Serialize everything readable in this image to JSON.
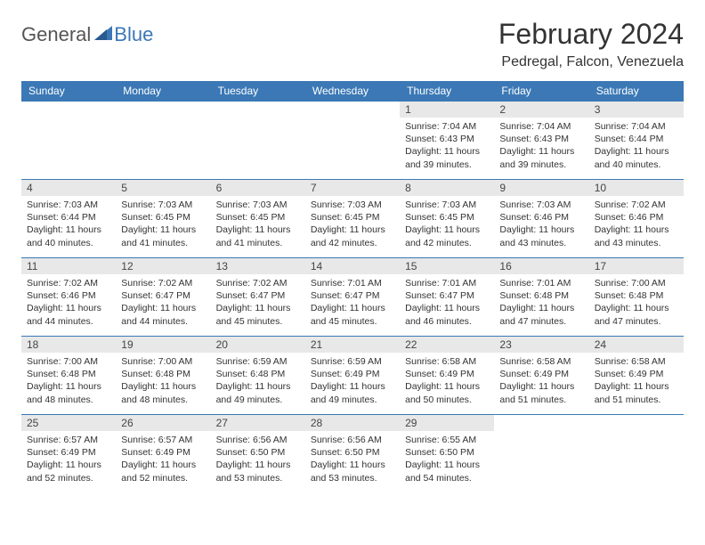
{
  "logo": {
    "general": "General",
    "blue": "Blue"
  },
  "title": "February 2024",
  "location": "Pedregal, Falcon, Venezuela",
  "colors": {
    "header_bg": "#3b78b5",
    "header_text": "#ffffff",
    "daynum_bg": "#e8e8e8",
    "row_border": "#3b78b5",
    "logo_general": "#555555",
    "logo_blue": "#3b78b5"
  },
  "weekdays": [
    "Sunday",
    "Monday",
    "Tuesday",
    "Wednesday",
    "Thursday",
    "Friday",
    "Saturday"
  ],
  "weeks": [
    [
      {
        "day": "",
        "sunrise": "",
        "sunset": "",
        "daylight": ""
      },
      {
        "day": "",
        "sunrise": "",
        "sunset": "",
        "daylight": ""
      },
      {
        "day": "",
        "sunrise": "",
        "sunset": "",
        "daylight": ""
      },
      {
        "day": "",
        "sunrise": "",
        "sunset": "",
        "daylight": ""
      },
      {
        "day": "1",
        "sunrise": "Sunrise: 7:04 AM",
        "sunset": "Sunset: 6:43 PM",
        "daylight": "Daylight: 11 hours and 39 minutes."
      },
      {
        "day": "2",
        "sunrise": "Sunrise: 7:04 AM",
        "sunset": "Sunset: 6:43 PM",
        "daylight": "Daylight: 11 hours and 39 minutes."
      },
      {
        "day": "3",
        "sunrise": "Sunrise: 7:04 AM",
        "sunset": "Sunset: 6:44 PM",
        "daylight": "Daylight: 11 hours and 40 minutes."
      }
    ],
    [
      {
        "day": "4",
        "sunrise": "Sunrise: 7:03 AM",
        "sunset": "Sunset: 6:44 PM",
        "daylight": "Daylight: 11 hours and 40 minutes."
      },
      {
        "day": "5",
        "sunrise": "Sunrise: 7:03 AM",
        "sunset": "Sunset: 6:45 PM",
        "daylight": "Daylight: 11 hours and 41 minutes."
      },
      {
        "day": "6",
        "sunrise": "Sunrise: 7:03 AM",
        "sunset": "Sunset: 6:45 PM",
        "daylight": "Daylight: 11 hours and 41 minutes."
      },
      {
        "day": "7",
        "sunrise": "Sunrise: 7:03 AM",
        "sunset": "Sunset: 6:45 PM",
        "daylight": "Daylight: 11 hours and 42 minutes."
      },
      {
        "day": "8",
        "sunrise": "Sunrise: 7:03 AM",
        "sunset": "Sunset: 6:45 PM",
        "daylight": "Daylight: 11 hours and 42 minutes."
      },
      {
        "day": "9",
        "sunrise": "Sunrise: 7:03 AM",
        "sunset": "Sunset: 6:46 PM",
        "daylight": "Daylight: 11 hours and 43 minutes."
      },
      {
        "day": "10",
        "sunrise": "Sunrise: 7:02 AM",
        "sunset": "Sunset: 6:46 PM",
        "daylight": "Daylight: 11 hours and 43 minutes."
      }
    ],
    [
      {
        "day": "11",
        "sunrise": "Sunrise: 7:02 AM",
        "sunset": "Sunset: 6:46 PM",
        "daylight": "Daylight: 11 hours and 44 minutes."
      },
      {
        "day": "12",
        "sunrise": "Sunrise: 7:02 AM",
        "sunset": "Sunset: 6:47 PM",
        "daylight": "Daylight: 11 hours and 44 minutes."
      },
      {
        "day": "13",
        "sunrise": "Sunrise: 7:02 AM",
        "sunset": "Sunset: 6:47 PM",
        "daylight": "Daylight: 11 hours and 45 minutes."
      },
      {
        "day": "14",
        "sunrise": "Sunrise: 7:01 AM",
        "sunset": "Sunset: 6:47 PM",
        "daylight": "Daylight: 11 hours and 45 minutes."
      },
      {
        "day": "15",
        "sunrise": "Sunrise: 7:01 AM",
        "sunset": "Sunset: 6:47 PM",
        "daylight": "Daylight: 11 hours and 46 minutes."
      },
      {
        "day": "16",
        "sunrise": "Sunrise: 7:01 AM",
        "sunset": "Sunset: 6:48 PM",
        "daylight": "Daylight: 11 hours and 47 minutes."
      },
      {
        "day": "17",
        "sunrise": "Sunrise: 7:00 AM",
        "sunset": "Sunset: 6:48 PM",
        "daylight": "Daylight: 11 hours and 47 minutes."
      }
    ],
    [
      {
        "day": "18",
        "sunrise": "Sunrise: 7:00 AM",
        "sunset": "Sunset: 6:48 PM",
        "daylight": "Daylight: 11 hours and 48 minutes."
      },
      {
        "day": "19",
        "sunrise": "Sunrise: 7:00 AM",
        "sunset": "Sunset: 6:48 PM",
        "daylight": "Daylight: 11 hours and 48 minutes."
      },
      {
        "day": "20",
        "sunrise": "Sunrise: 6:59 AM",
        "sunset": "Sunset: 6:48 PM",
        "daylight": "Daylight: 11 hours and 49 minutes."
      },
      {
        "day": "21",
        "sunrise": "Sunrise: 6:59 AM",
        "sunset": "Sunset: 6:49 PM",
        "daylight": "Daylight: 11 hours and 49 minutes."
      },
      {
        "day": "22",
        "sunrise": "Sunrise: 6:58 AM",
        "sunset": "Sunset: 6:49 PM",
        "daylight": "Daylight: 11 hours and 50 minutes."
      },
      {
        "day": "23",
        "sunrise": "Sunrise: 6:58 AM",
        "sunset": "Sunset: 6:49 PM",
        "daylight": "Daylight: 11 hours and 51 minutes."
      },
      {
        "day": "24",
        "sunrise": "Sunrise: 6:58 AM",
        "sunset": "Sunset: 6:49 PM",
        "daylight": "Daylight: 11 hours and 51 minutes."
      }
    ],
    [
      {
        "day": "25",
        "sunrise": "Sunrise: 6:57 AM",
        "sunset": "Sunset: 6:49 PM",
        "daylight": "Daylight: 11 hours and 52 minutes."
      },
      {
        "day": "26",
        "sunrise": "Sunrise: 6:57 AM",
        "sunset": "Sunset: 6:49 PM",
        "daylight": "Daylight: 11 hours and 52 minutes."
      },
      {
        "day": "27",
        "sunrise": "Sunrise: 6:56 AM",
        "sunset": "Sunset: 6:50 PM",
        "daylight": "Daylight: 11 hours and 53 minutes."
      },
      {
        "day": "28",
        "sunrise": "Sunrise: 6:56 AM",
        "sunset": "Sunset: 6:50 PM",
        "daylight": "Daylight: 11 hours and 53 minutes."
      },
      {
        "day": "29",
        "sunrise": "Sunrise: 6:55 AM",
        "sunset": "Sunset: 6:50 PM",
        "daylight": "Daylight: 11 hours and 54 minutes."
      },
      {
        "day": "",
        "sunrise": "",
        "sunset": "",
        "daylight": ""
      },
      {
        "day": "",
        "sunrise": "",
        "sunset": "",
        "daylight": ""
      }
    ]
  ]
}
